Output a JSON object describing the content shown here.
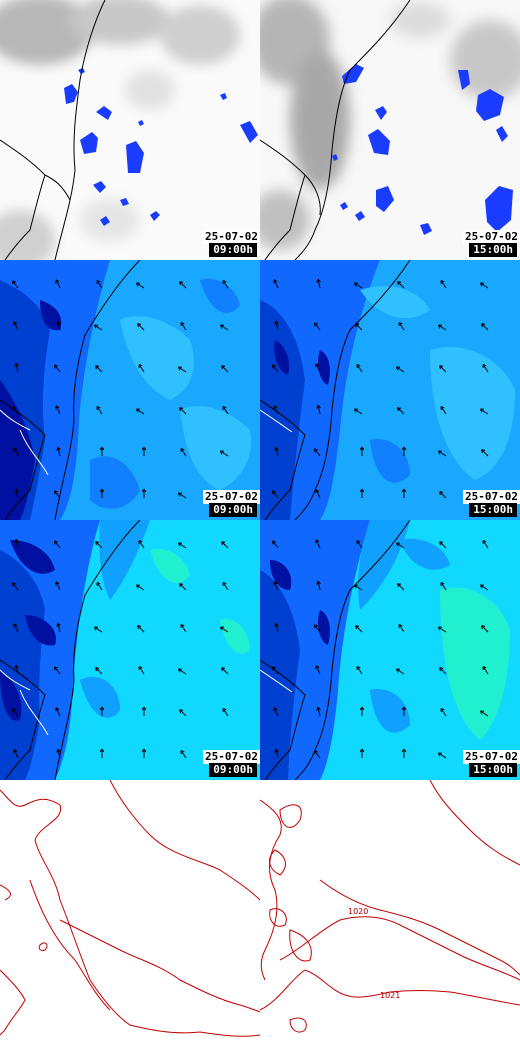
{
  "panels": [
    {
      "id": "cloud-0900",
      "type": "cloud",
      "date": "25-07-02",
      "time": "09:00h"
    },
    {
      "id": "cloud-1500",
      "type": "cloud",
      "date": "25-07-02",
      "time": "15:00h"
    },
    {
      "id": "wind-low-0900",
      "type": "wind",
      "date": "25-07-02",
      "time": "09:00h"
    },
    {
      "id": "wind-low-1500",
      "type": "wind",
      "date": "25-07-02",
      "time": "15:00h"
    },
    {
      "id": "wind-high-0900",
      "type": "wind",
      "date": "25-07-02",
      "time": "09:00h"
    },
    {
      "id": "wind-high-1500",
      "type": "wind",
      "date": "25-07-02",
      "time": "15:00h"
    },
    {
      "id": "pressure-0900",
      "type": "pressure"
    },
    {
      "id": "pressure-1500",
      "type": "pressure",
      "isobar_labels": [
        "1020",
        "1021"
      ]
    }
  ],
  "colors": {
    "precip": "#1a3cff",
    "isobar": "#c00000",
    "wind_dark": "#0010a0",
    "wind_mid": "#1060ff",
    "wind_light": "#10a0ff",
    "wind_cyan": "#10d8ff",
    "wind_green": "#20f0d0"
  },
  "icons": [
    "wind-arrow-icon",
    "coastline-icon"
  ]
}
